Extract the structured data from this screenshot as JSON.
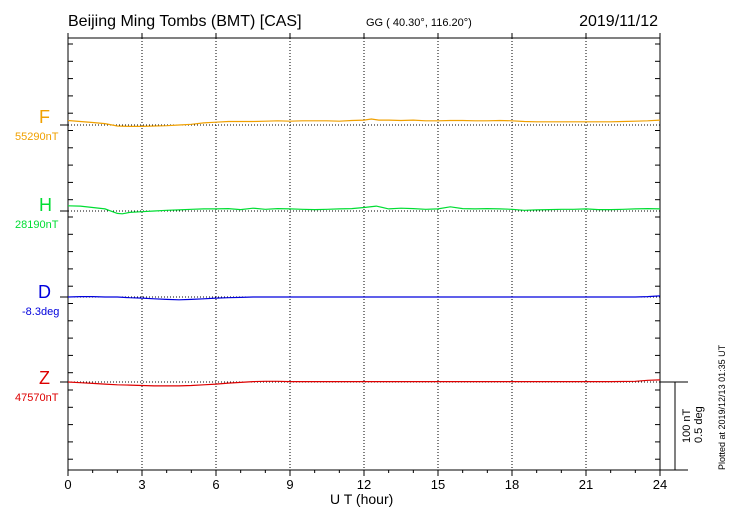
{
  "header": {
    "station": "Beijing Ming Tombs (BMT)  [CAS]",
    "coords": "GG ( 40.30°, 116.20°)",
    "date": "2019/11/12"
  },
  "plotted_note": "Plotted at 2019/12/13 01:35 UT",
  "scale": {
    "nt_label": "100 nT",
    "deg_label": "0.5 deg"
  },
  "chart_data": {
    "type": "line",
    "title": "Beijing Ming Tombs (BMT)  [CAS]",
    "xlabel": "U T (hour)",
    "xlim": [
      0,
      24
    ],
    "xticks": [
      0,
      3,
      6,
      9,
      12,
      15,
      18,
      21,
      24
    ],
    "grid": true,
    "units_note": "y values are offsets from each channel baseline, in nT (D in deg)",
    "scale_bar": {
      "nT": 100,
      "deg": 0.5
    },
    "series": [
      {
        "name": "F",
        "baseline_label": "55290nT",
        "color": "#F0A000",
        "x": [
          0,
          0.5,
          1,
          1.5,
          2,
          2.5,
          3,
          3.5,
          4,
          4.5,
          5,
          5.5,
          6,
          6.5,
          7,
          7.5,
          8,
          8.5,
          9,
          9.5,
          10,
          10.5,
          11,
          11.5,
          12,
          12.3,
          12.6,
          13,
          13.5,
          14,
          14.5,
          15,
          15.5,
          16,
          16.5,
          17,
          17.5,
          18,
          18.5,
          19,
          19.5,
          20,
          20.5,
          21,
          21.5,
          22,
          22.5,
          23,
          23.5,
          24
        ],
        "y": [
          13,
          10,
          7,
          4,
          -3,
          -4,
          -4,
          -3,
          -2,
          0,
          2,
          6,
          8,
          10,
          10,
          10,
          11,
          12,
          11,
          12,
          12,
          12,
          11,
          13,
          14,
          17,
          14,
          14,
          13,
          14,
          12,
          12,
          13,
          13,
          12,
          12,
          13,
          12,
          10,
          9,
          9,
          9,
          9,
          9,
          9,
          9,
          10,
          11,
          12,
          14
        ]
      },
      {
        "name": "H",
        "baseline_label": "28190nT",
        "color": "#00DD33",
        "x": [
          0,
          0.5,
          1,
          1.5,
          2,
          2.2,
          2.5,
          3,
          3.5,
          4,
          4.5,
          5,
          5.5,
          6,
          6.5,
          7,
          7.5,
          8,
          8.5,
          9,
          9.5,
          10,
          10.5,
          11,
          11.5,
          12,
          12.5,
          13,
          13.5,
          14,
          14.5,
          15,
          15.5,
          16,
          16.5,
          17,
          17.5,
          18,
          18.5,
          19,
          19.5,
          20,
          20.5,
          21,
          21.5,
          22,
          22.5,
          23,
          23.5,
          24
        ],
        "y": [
          15,
          14,
          10,
          6,
          -7,
          -8,
          -4,
          -2,
          0,
          2,
          3,
          5,
          6,
          6,
          7,
          4,
          8,
          5,
          7,
          6,
          5,
          4,
          5,
          6,
          7,
          10,
          14,
          6,
          8,
          7,
          5,
          6,
          12,
          7,
          6,
          7,
          6,
          5,
          2,
          3,
          4,
          5,
          5,
          6,
          4,
          4,
          5,
          6,
          7,
          6
        ]
      },
      {
        "name": "D",
        "baseline_label": "-8.3deg",
        "color": "#0000DD",
        "x": [
          0,
          0.5,
          1,
          1.5,
          2,
          2.5,
          3,
          3.5,
          4,
          4.5,
          5,
          5.5,
          6,
          6.5,
          7,
          7.5,
          8,
          9,
          10,
          11,
          12,
          13,
          14,
          15,
          16,
          17,
          18,
          19,
          20,
          21,
          22,
          23,
          23.5,
          24
        ],
        "y": [
          0,
          1,
          1,
          0,
          0,
          -2,
          -3,
          -5,
          -7,
          -8,
          -7,
          -5,
          -3,
          -2,
          -1,
          0,
          0,
          0,
          0,
          0,
          0,
          0,
          0,
          0,
          0,
          0,
          0,
          0,
          0,
          0,
          0,
          0,
          1,
          3
        ]
      },
      {
        "name": "Z",
        "baseline_label": "47570nT",
        "color": "#DD0000",
        "x": [
          0,
          0.5,
          1,
          1.5,
          2,
          2.5,
          3,
          3.5,
          4,
          4.5,
          5,
          5.5,
          6,
          6.5,
          7,
          7.5,
          8,
          8.5,
          9,
          10,
          11,
          12,
          13,
          14,
          15,
          16,
          17,
          18,
          19,
          20,
          21,
          22,
          23,
          23.5,
          24
        ],
        "y": [
          0,
          -2,
          -4,
          -6,
          -8,
          -9,
          -10,
          -11,
          -11,
          -11,
          -10,
          -8,
          -6,
          -3,
          -1,
          1,
          2,
          2,
          1,
          1,
          1,
          1,
          1,
          1,
          1,
          1,
          1,
          1,
          1,
          1,
          1,
          1,
          2,
          5,
          6
        ]
      }
    ]
  }
}
